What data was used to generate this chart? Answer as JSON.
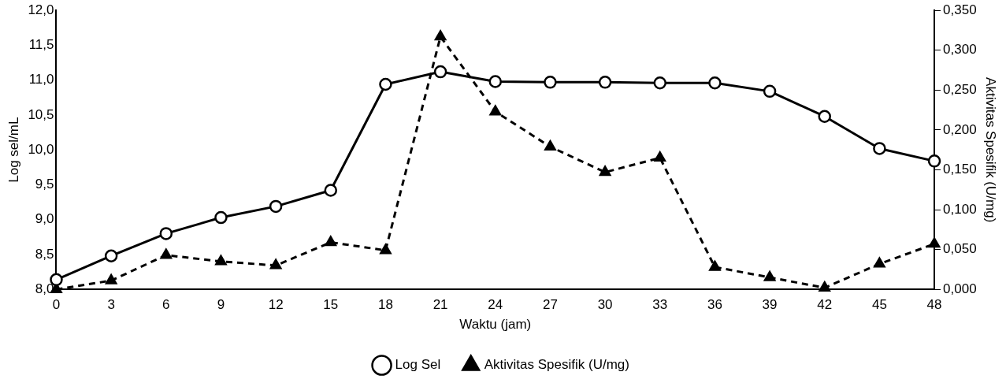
{
  "chart_data": {
    "type": "line",
    "xlabel": "Waktu (jam)",
    "ylabel": "Log sel/mL",
    "y2label": "Aktivitas Spesifik (U/mg)",
    "x": [
      0,
      3,
      6,
      9,
      12,
      15,
      18,
      21,
      24,
      27,
      30,
      33,
      36,
      39,
      42,
      45,
      48
    ],
    "xlim": [
      0,
      48
    ],
    "xticks": [
      0,
      3,
      6,
      9,
      12,
      15,
      18,
      21,
      24,
      27,
      30,
      33,
      36,
      39,
      42,
      45,
      48
    ],
    "ylim": [
      8,
      12
    ],
    "yticks": [
      {
        "value": 8,
        "label": "8,0"
      },
      {
        "value": 8.5,
        "label": "8,5"
      },
      {
        "value": 9,
        "label": "9,0"
      },
      {
        "value": 9.5,
        "label": "9,5"
      },
      {
        "value": 10,
        "label": "10,0"
      },
      {
        "value": 10.5,
        "label": "10,5"
      },
      {
        "value": 11,
        "label": "11,0"
      },
      {
        "value": 11.5,
        "label": "11,5"
      },
      {
        "value": 12,
        "label": "12,0"
      }
    ],
    "y2lim": [
      0,
      0.35
    ],
    "y2ticks": [
      {
        "value": 0,
        "label": "0,000"
      },
      {
        "value": 0.05,
        "label": "0,050"
      },
      {
        "value": 0.1,
        "label": "0,100"
      },
      {
        "value": 0.15,
        "label": "0,150"
      },
      {
        "value": 0.2,
        "label": "0,200"
      },
      {
        "value": 0.25,
        "label": "0,250"
      },
      {
        "value": 0.3,
        "label": "0,300"
      },
      {
        "value": 0.35,
        "label": "0,350"
      }
    ],
    "grid": false,
    "legend": "bottom",
    "series": [
      {
        "name": "Log Sel",
        "color": "#000000",
        "marker": "circle",
        "line_style": "solid",
        "values": [
          8.14,
          8.48,
          8.8,
          9.03,
          9.19,
          9.42,
          10.94,
          11.12,
          10.98,
          10.97,
          10.97,
          10.96,
          10.96,
          10.84,
          10.48,
          10.02,
          9.84
        ]
      },
      {
        "name": "Aktivitas Spesifik (U/mg)",
        "color": "#000000",
        "marker": "triangle",
        "line_style": "dashed",
        "axis": "y2",
        "values": [
          0,
          0.011,
          0.043,
          0.035,
          0.03,
          0.059,
          0.049,
          0.317,
          0.223,
          0.179,
          0.147,
          0.165,
          0.028,
          0.015,
          0.002,
          0.032,
          0.057
        ]
      }
    ]
  }
}
